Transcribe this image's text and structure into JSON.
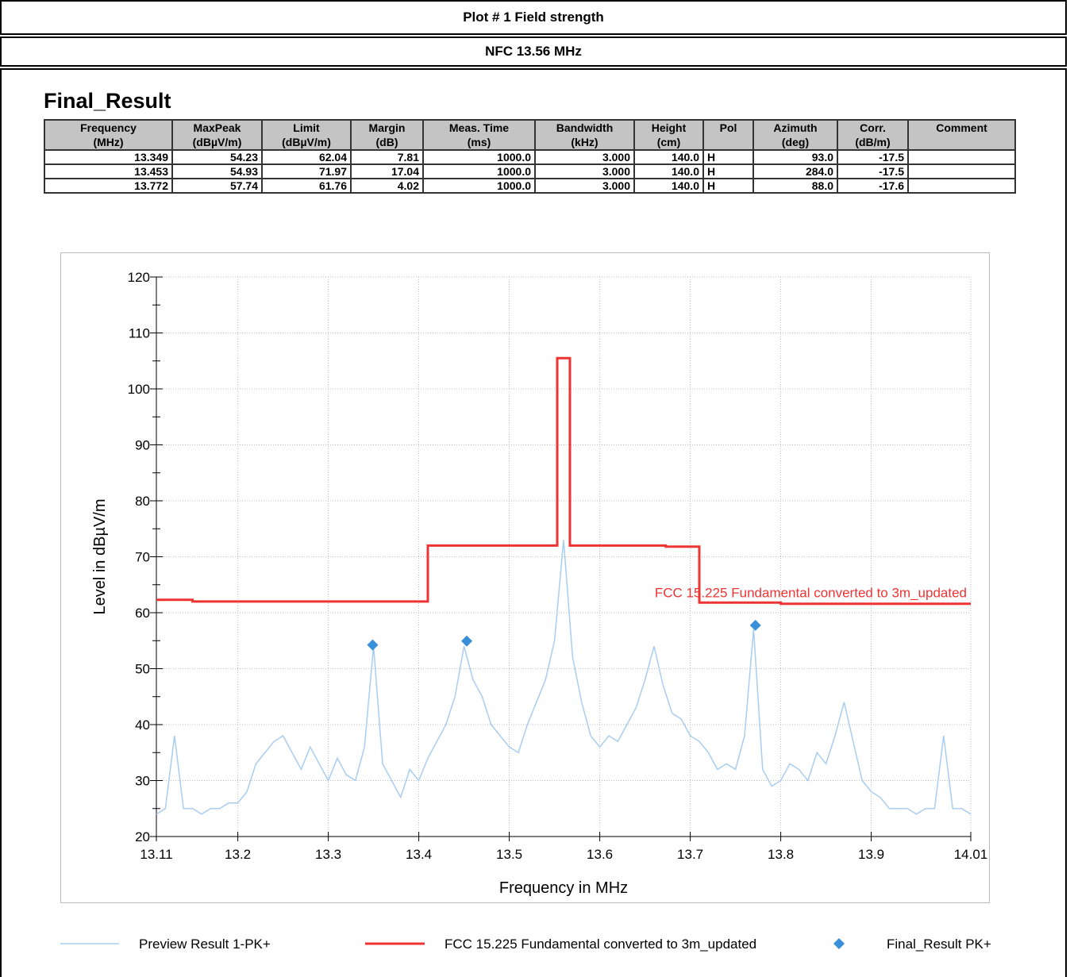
{
  "header": {
    "title": "Plot # 1 Field strength",
    "subtitle": "NFC 13.56 MHz"
  },
  "table": {
    "title": "Final_Result",
    "headers": [
      [
        "Frequency",
        "(MHz)"
      ],
      [
        "MaxPeak",
        "(dBµV/m)"
      ],
      [
        "Limit",
        "(dBµV/m)"
      ],
      [
        "Margin",
        "(dB)"
      ],
      [
        "Meas. Time",
        "(ms)"
      ],
      [
        "Bandwidth",
        "(kHz)"
      ],
      [
        "Height",
        "(cm)"
      ],
      [
        "Pol"
      ],
      [
        "Azimuth",
        "(deg)"
      ],
      [
        "Corr.",
        "(dB/m)"
      ],
      [
        "Comment"
      ]
    ],
    "rows": [
      [
        "13.349",
        "54.23",
        "62.04",
        "7.81",
        "1000.0",
        "3.000",
        "140.0",
        "H",
        "93.0",
        "-17.5"
      ],
      [
        "13.453",
        "54.93",
        "71.97",
        "17.04",
        "1000.0",
        "3.000",
        "140.0",
        "H",
        "284.0",
        "-17.5"
      ],
      [
        "13.772",
        "57.74",
        "61.76",
        "4.02",
        "1000.0",
        "3.000",
        "140.0",
        "H",
        "88.0",
        "-17.6"
      ]
    ]
  },
  "chart_data": {
    "type": "line",
    "x_label": "Frequency in MHz",
    "y_label": "Level in dBµV/m",
    "annotation": "FCC 15.225 Fundamental converted to 3m_updated",
    "xlim": [
      13.11,
      14.01
    ],
    "ylim": [
      20,
      120
    ],
    "xticks": [
      13.11,
      13.2,
      13.3,
      13.4,
      13.5,
      13.6,
      13.7,
      13.8,
      13.9,
      14.01
    ],
    "yticks": [
      20,
      30,
      40,
      50,
      60,
      70,
      80,
      90,
      100,
      110,
      120
    ],
    "grid": true,
    "series": [
      {
        "name": "Preview Result 1-PK+",
        "color": "#a8cdf0",
        "x": [
          13.11,
          13.12,
          13.13,
          13.14,
          13.15,
          13.16,
          13.17,
          13.18,
          13.19,
          13.2,
          13.21,
          13.22,
          13.23,
          13.24,
          13.25,
          13.26,
          13.27,
          13.28,
          13.29,
          13.3,
          13.31,
          13.32,
          13.33,
          13.34,
          13.35,
          13.36,
          13.37,
          13.38,
          13.39,
          13.4,
          13.41,
          13.42,
          13.43,
          13.44,
          13.45,
          13.46,
          13.47,
          13.48,
          13.49,
          13.5,
          13.51,
          13.52,
          13.53,
          13.54,
          13.55,
          13.56,
          13.57,
          13.58,
          13.59,
          13.6,
          13.61,
          13.62,
          13.63,
          13.64,
          13.65,
          13.66,
          13.67,
          13.68,
          13.69,
          13.7,
          13.71,
          13.72,
          13.73,
          13.74,
          13.75,
          13.76,
          13.77,
          13.78,
          13.79,
          13.8,
          13.81,
          13.82,
          13.83,
          13.84,
          13.85,
          13.86,
          13.87,
          13.88,
          13.89,
          13.9,
          13.91,
          13.92,
          13.93,
          13.94,
          13.95,
          13.96,
          13.97,
          13.98,
          13.99,
          14.0,
          14.01
        ],
        "values": [
          24,
          25,
          38,
          25,
          25,
          24,
          25,
          25,
          26,
          26,
          28,
          33,
          35,
          37,
          38,
          35,
          32,
          36,
          33,
          30,
          34,
          31,
          30,
          36,
          54,
          33,
          30,
          27,
          32,
          30,
          34,
          37,
          40,
          45,
          54,
          48,
          45,
          40,
          38,
          36,
          35,
          40,
          44,
          48,
          55,
          73,
          52,
          44,
          38,
          36,
          38,
          37,
          40,
          43,
          48,
          54,
          47,
          42,
          41,
          38,
          37,
          35,
          32,
          33,
          32,
          38,
          57,
          32,
          29,
          30,
          33,
          32,
          30,
          35,
          33,
          38,
          44,
          37,
          30,
          28,
          27,
          25,
          25,
          25,
          24,
          25,
          25,
          38,
          25,
          25,
          24
        ]
      },
      {
        "name": "FCC 15.225 Fundamental converted to 3m_updated",
        "color": "#ee3333",
        "x": [
          13.11,
          13.15,
          13.15,
          13.41,
          13.41,
          13.553,
          13.553,
          13.567,
          13.567,
          13.673,
          13.673,
          13.71,
          13.71,
          13.8,
          13.8,
          14.01
        ],
        "values": [
          62.3,
          62.3,
          62,
          62,
          72,
          72,
          105.5,
          105.5,
          72,
          72,
          71.8,
          71.8,
          61.8,
          61.8,
          61.6,
          61.6
        ]
      },
      {
        "name": "Final_Result PK+",
        "color": "#3a8fd9",
        "marker": "diamond",
        "x": [
          13.349,
          13.453,
          13.772
        ],
        "values": [
          54.23,
          54.93,
          57.74
        ]
      }
    ]
  }
}
